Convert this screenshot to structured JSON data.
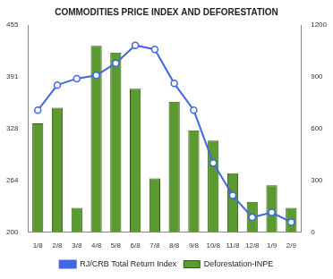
{
  "chart_data": {
    "type": "bar",
    "title": "COMMODITIES PRICE INDEX AND DEFORESTATION",
    "categories": [
      "1/8",
      "2/8",
      "3/8",
      "4/8",
      "5/8",
      "6/8",
      "7/8",
      "8/8",
      "9/8",
      "10/8",
      "11/8",
      "12/8",
      "1/9",
      "2/9"
    ],
    "series": [
      {
        "name": "RJ/CRB Total Return Index",
        "type": "line",
        "color": "#4169e1",
        "marker": "circle",
        "axis": "y",
        "values": [
          350,
          381,
          389,
          393,
          408,
          430,
          425,
          383,
          350,
          285,
          245,
          218,
          224,
          212
        ]
      },
      {
        "name": "Deforestation-INPE",
        "type": "bar",
        "color": "#5a9a30",
        "axis": "y2",
        "values": [
          630,
          720,
          140,
          1080,
          1040,
          830,
          310,
          755,
          590,
          530,
          340,
          175,
          270,
          140
        ]
      }
    ],
    "ylim": [
      200,
      455
    ],
    "yticks": [
      200,
      {
        "value": 263.75,
        "label": "264"
      },
      {
        "value": 327.5,
        "label": "328"
      },
      {
        "value": 391.25,
        "label": "391"
      },
      455
    ],
    "y2lim": [
      0,
      1200
    ],
    "y2ticks": [
      0,
      300,
      600,
      900,
      1200
    ],
    "grid": false,
    "legend": "bottom"
  }
}
